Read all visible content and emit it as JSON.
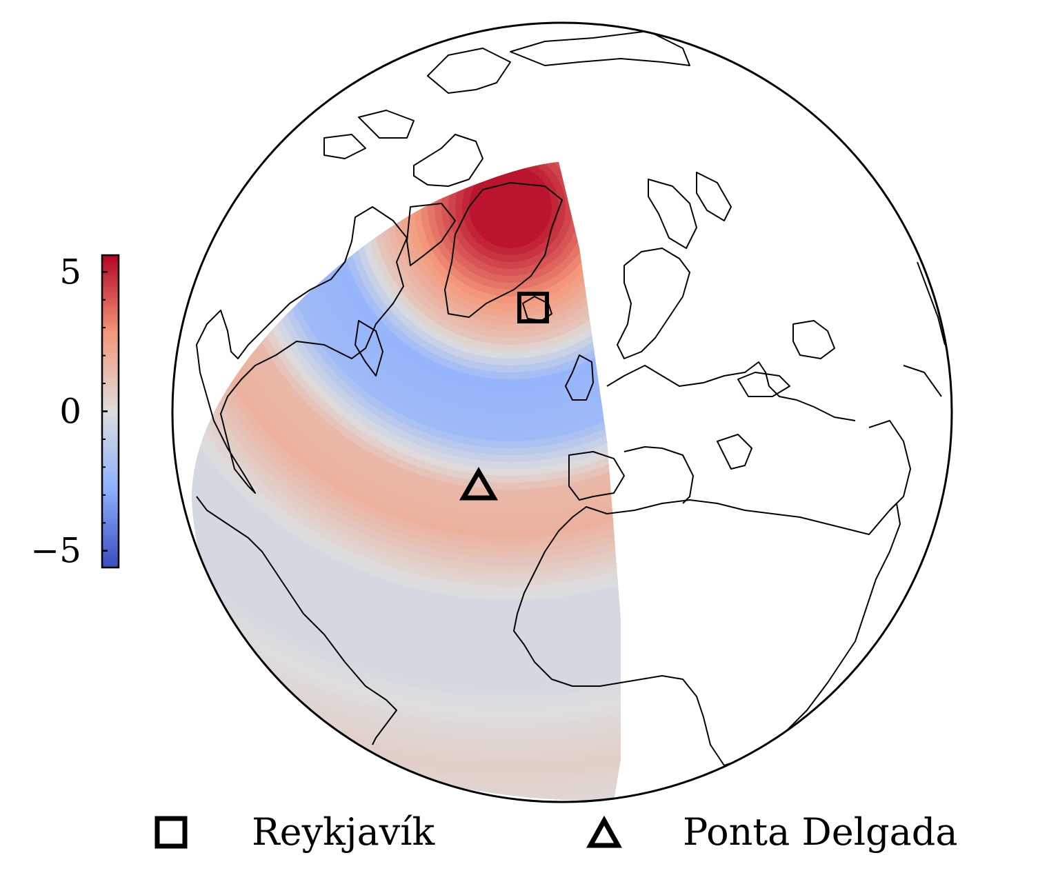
{
  "map": {
    "projection": "orthographic",
    "colormap": [
      "#3b4cc0",
      "#8db0fe",
      "#dddddd",
      "#f4987a",
      "#b40426"
    ],
    "colorbar": {
      "min": -5.6,
      "max": 5.6,
      "ticks": [
        {
          "value": 5,
          "label": "5"
        },
        {
          "value": 0,
          "label": "0"
        },
        {
          "value": -5,
          "label": "−5"
        }
      ]
    },
    "markers": [
      {
        "name": "Reykjavík",
        "symbol": "square"
      },
      {
        "name": "Ponta Delgada",
        "symbol": "triangle"
      }
    ]
  },
  "legend": {
    "items": [
      {
        "symbol": "square",
        "label": "Reykjavík"
      },
      {
        "symbol": "triangle",
        "label": "Ponta Delgada"
      }
    ]
  }
}
